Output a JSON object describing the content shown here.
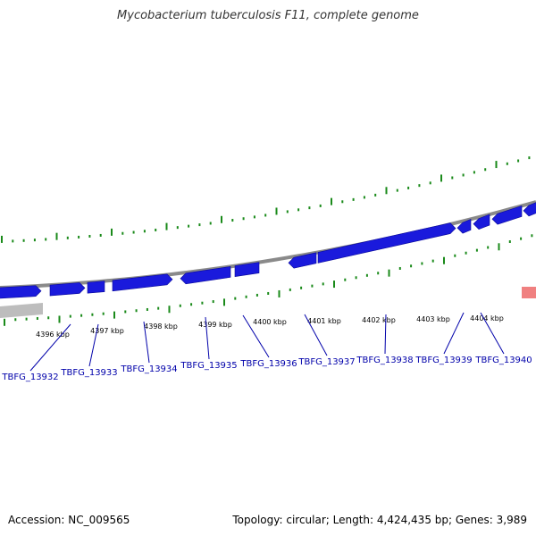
{
  "title": "Mycobacterium tuberculosis F11, complete genome",
  "footer": {
    "accession": "Accession: NC_009565",
    "topology": "Topology: circular; Length: 4,424,435 bp; Genes: 3,989"
  },
  "colors": {
    "gene_forward": "#1a1adc",
    "gene_label": "#0000aa",
    "backbone": "#8a8a8a",
    "gc_ticks": "#1a8a1a",
    "other_feature": "#f08080",
    "gray_feature": "#bdbdbd"
  },
  "kbp_labels": [
    "4396 kbp",
    "4397 kbp",
    "4398 kbp",
    "4399 kbp",
    "4400 kbp",
    "4401 kbp",
    "4402 kbp",
    "4403 kbp",
    "4404 kbp"
  ],
  "gene_labels": [
    "TBFG_13932",
    "TBFG_13933",
    "TBFG_13934",
    "TBFG_13935",
    "TBFG_13936",
    "TBFG_13937",
    "TBFG_13938",
    "TBFG_13939",
    "TBFG_13940"
  ]
}
